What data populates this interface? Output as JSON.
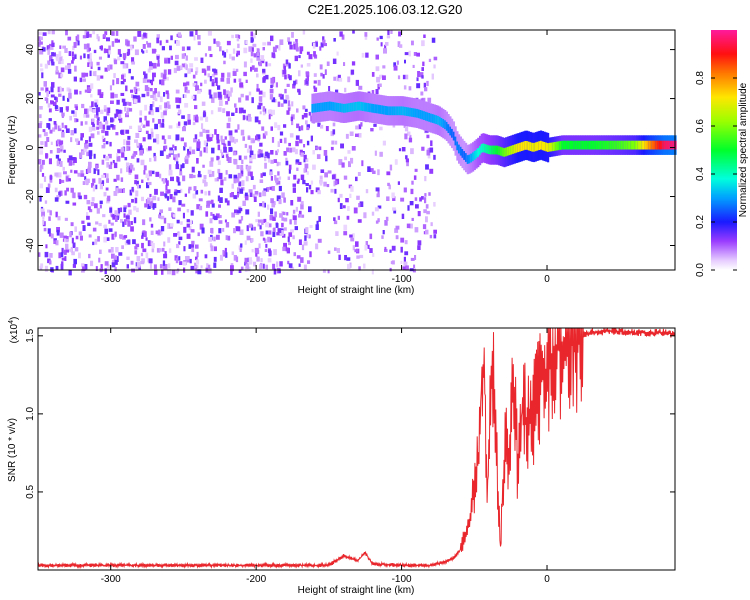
{
  "title": "C2E1.2025.106.03.12.G20",
  "colorbar": {
    "label": "Normalized spectral amplitude",
    "ticks": [
      "0.0",
      "0.2",
      "0.4",
      "0.6",
      "0.8"
    ],
    "tick_values": [
      0.0,
      0.2,
      0.4,
      0.6,
      0.8
    ]
  },
  "chart_data": [
    {
      "type": "heatmap",
      "title": "C2E1.2025.106.03.12.G20",
      "xlabel": "Height of straight line (km)",
      "ylabel": "Frequency (Hz)",
      "xlim": [
        -350,
        88
      ],
      "ylim": [
        -50,
        48
      ],
      "xticks": [
        -300,
        -200,
        -100,
        0
      ],
      "xtick_labels": [
        "-300",
        "-200",
        "-100",
        "0"
      ],
      "yticks": [
        -40,
        -20,
        0,
        20,
        40
      ],
      "ytick_labels": [
        "-40",
        "-20",
        "0",
        "20",
        "40"
      ],
      "colorscale": "rainbow (white-purple-blue-cyan-green-yellow-red-magenta)",
      "clim": [
        0,
        1
      ],
      "noise_region": {
        "x_range": [
          -350,
          -78
        ],
        "frequency_range": [
          -50,
          48
        ],
        "amplitude_approx": 0.1
      },
      "signal_track": {
        "x": [
          -162,
          -150,
          -140,
          -130,
          -120,
          -110,
          -100,
          -90,
          -80,
          -75,
          -70,
          -65,
          -62,
          -58,
          -55,
          -52,
          -48,
          -45,
          -40,
          -35,
          -30,
          -25,
          -20,
          -15,
          -10,
          -5,
          0,
          10,
          20,
          30,
          40,
          50,
          60,
          70,
          80,
          88
        ],
        "frequency": [
          16,
          17,
          16,
          17,
          16,
          15,
          15,
          14,
          12,
          11,
          9,
          5,
          0,
          -3,
          -5,
          -4,
          -2,
          0,
          -1,
          -1,
          -2,
          -1,
          0,
          1,
          0,
          1,
          0,
          1,
          1,
          1,
          1,
          1,
          1,
          1,
          1,
          1
        ],
        "amplitude": [
          0.3,
          0.3,
          0.32,
          0.33,
          0.3,
          0.3,
          0.32,
          0.3,
          0.3,
          0.32,
          0.28,
          0.25,
          0.28,
          0.25,
          0.28,
          0.32,
          0.38,
          0.4,
          0.45,
          0.5,
          0.58,
          0.65,
          0.72,
          0.72,
          0.7,
          0.72,
          0.7,
          0.5,
          0.5,
          0.5,
          0.52,
          0.55,
          0.6,
          0.8,
          0.95,
          0.98
        ]
      }
    },
    {
      "type": "line",
      "xlabel": "Height of straight line (km)",
      "ylabel": "SNR (10 * v/v)",
      "y_multiplier_label": "(x10",
      "y_multiplier_exp": "4",
      "y_multiplier_close": ")",
      "xlim": [
        -350,
        88
      ],
      "ylim": [
        0,
        15500
      ],
      "xticks": [
        -300,
        -200,
        -100,
        0
      ],
      "xtick_labels": [
        "-300",
        "-200",
        "-100",
        "0"
      ],
      "yticks": [
        5000,
        10000,
        15000
      ],
      "ytick_labels": [
        "0.5",
        "1.0",
        "1.5"
      ],
      "color": "#e8262b",
      "series": [
        {
          "x": [
            -350,
            -300,
            -250,
            -200,
            -150,
            -140,
            -130,
            -125,
            -120,
            -100,
            -80,
            -70,
            -65,
            -60,
            -55,
            -50,
            -47,
            -45,
            -43,
            -41,
            -39,
            -37,
            -35,
            -32,
            -30,
            -28,
            -26,
            -24,
            -22,
            -20,
            -18,
            -16,
            -14,
            -12,
            -10,
            -8,
            -6,
            -4,
            -2,
            0,
            5,
            10,
            15,
            20,
            25,
            30,
            40,
            50,
            60,
            70,
            80,
            88
          ],
          "values": [
            300,
            300,
            300,
            300,
            300,
            900,
            600,
            1100,
            400,
            300,
            300,
            500,
            700,
            1200,
            2500,
            5000,
            7200,
            12000,
            13500,
            4000,
            11500,
            12800,
            8000,
            1500,
            6000,
            8500,
            7500,
            11000,
            10500,
            6000,
            9000,
            12000,
            8500,
            10000,
            9500,
            11500,
            11200,
            12000,
            12500,
            13000,
            13800,
            14500,
            14800,
            15000,
            15100,
            15200,
            15300,
            15300,
            15200,
            15200,
            15200,
            15100
          ]
        }
      ]
    }
  ]
}
